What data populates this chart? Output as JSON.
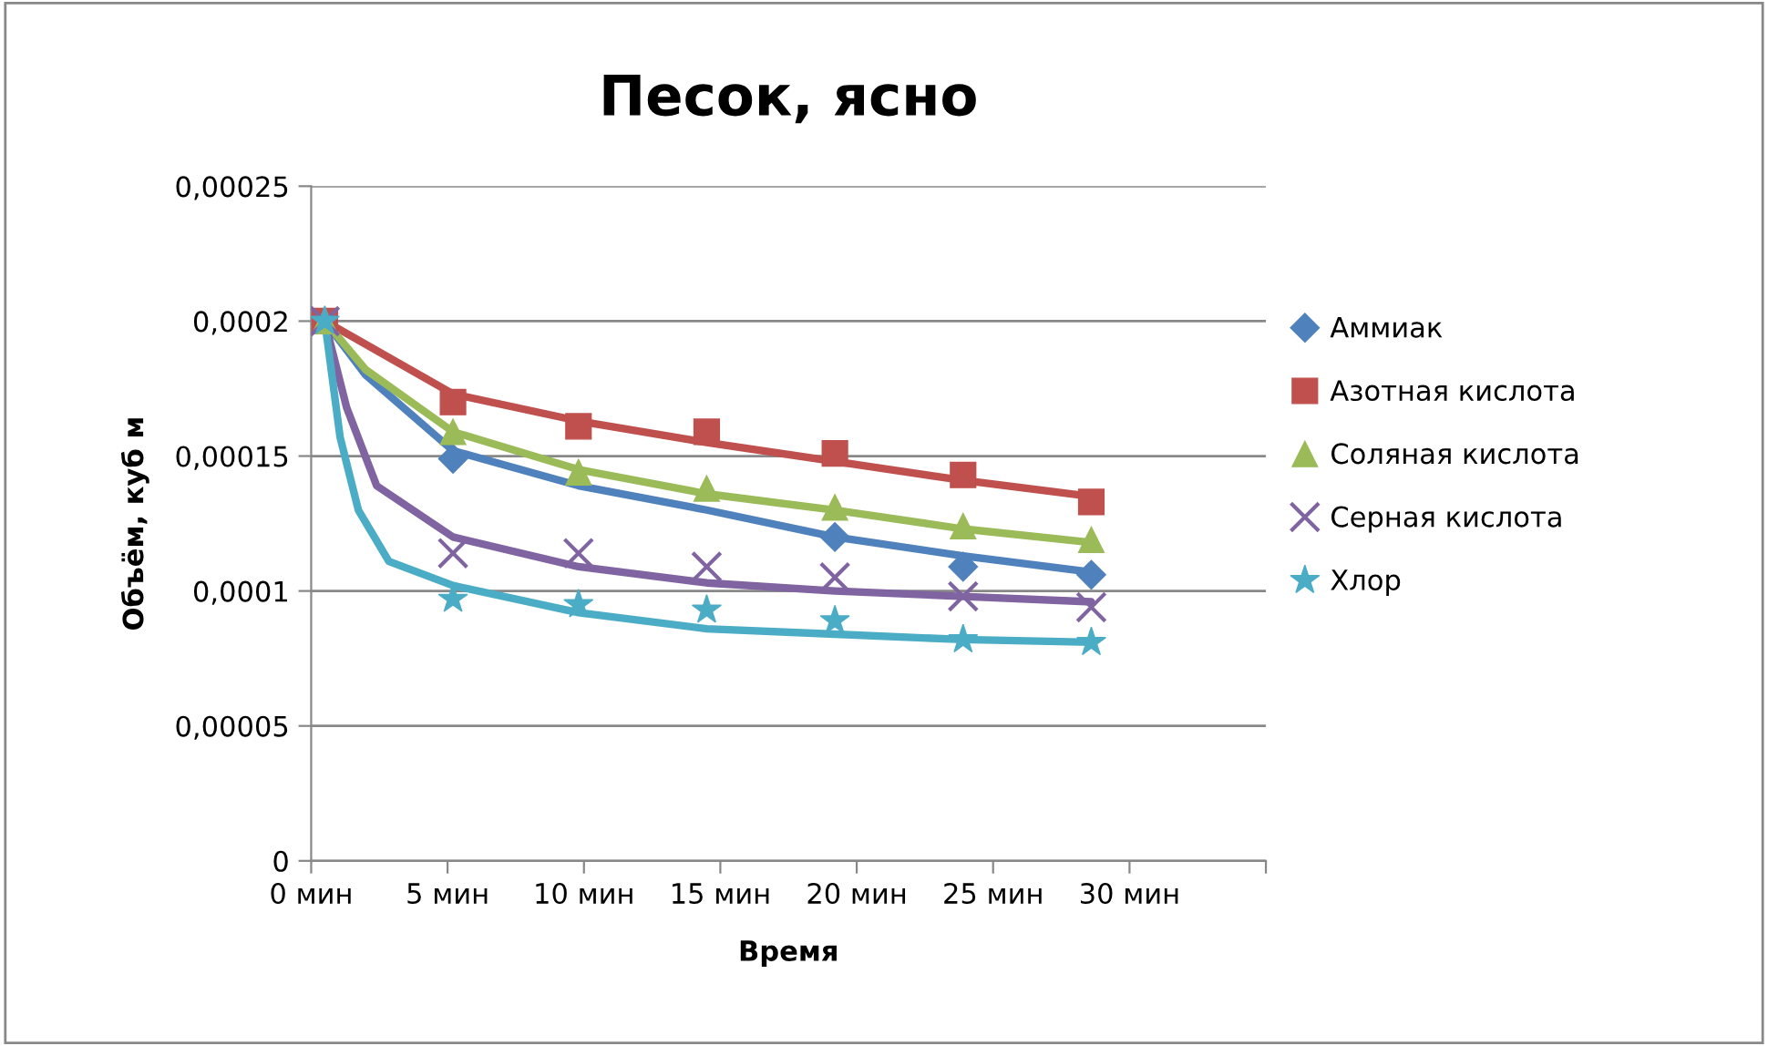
{
  "chart_data": {
    "type": "scatter",
    "title": "Песок, ясно",
    "xlabel": "Время",
    "ylabel": "Объём, куб м",
    "xlim": [
      0,
      35
    ],
    "xticks": [
      {
        "value": 0,
        "label": "0 мин"
      },
      {
        "value": 5,
        "label": "5 мин"
      },
      {
        "value": 10,
        "label": "10 мин"
      },
      {
        "value": 15,
        "label": "15 мин"
      },
      {
        "value": 20,
        "label": "20 мин"
      },
      {
        "value": 25,
        "label": "25 мин"
      },
      {
        "value": 30,
        "label": "30 мин"
      },
      {
        "value": 35,
        "label": null
      }
    ],
    "ylim": [
      0,
      0.00025
    ],
    "yticks": [
      {
        "value": 0,
        "label": "0"
      },
      {
        "value": 5e-05,
        "label": "0,00005"
      },
      {
        "value": 0.0001,
        "label": "0,0001"
      },
      {
        "value": 0.00015,
        "label": "0,00015"
      },
      {
        "value": 0.0002,
        "label": "0,0002"
      },
      {
        "value": 0.00025,
        "label": "0,00025"
      }
    ],
    "grid": "y",
    "legend": "right",
    "x": [
      0.5,
      5.2,
      9.8,
      14.5,
      19.2,
      23.9,
      28.6
    ],
    "series": [
      {
        "type": "line",
        "color": "#4f81bd",
        "marker": "none",
        "x": [
          0.5,
          2.0,
          5.2,
          9.8,
          14.5,
          19.2,
          23.9,
          28.6
        ],
        "values": [
          0.0002,
          0.00018,
          0.000152,
          0.000139,
          0.00013,
          0.00012,
          0.000113,
          0.000107
        ]
      },
      {
        "type": "line",
        "color": "#c0504d",
        "marker": "none",
        "x": [
          0.5,
          5.2,
          9.8,
          14.5,
          19.2,
          23.9,
          28.6
        ],
        "values": [
          0.0002,
          0.000173,
          0.000163,
          0.000155,
          0.000148,
          0.000141,
          0.000135
        ]
      },
      {
        "type": "line",
        "color": "#9bbb59",
        "marker": "none",
        "x": [
          0.5,
          2.0,
          5.2,
          9.8,
          14.5,
          19.2,
          23.9,
          28.6
        ],
        "values": [
          0.0002,
          0.000182,
          0.000159,
          0.000145,
          0.000136,
          0.00013,
          0.000123,
          0.000118
        ]
      },
      {
        "type": "line",
        "color": "#8064a2",
        "marker": "none",
        "x": [
          0.5,
          1.3,
          2.4,
          5.2,
          9.8,
          14.5,
          19.2,
          23.9,
          28.6
        ],
        "values": [
          0.0002,
          0.000168,
          0.000139,
          0.00012,
          0.000109,
          0.000103,
          0.0001,
          9.8e-05,
          9.6e-05
        ]
      },
      {
        "type": "line",
        "color": "#4bacc6",
        "marker": "none",
        "x": [
          0.5,
          1.06,
          1.73,
          2.85,
          5.2,
          9.8,
          14.5,
          19.2,
          23.9,
          28.6
        ],
        "values": [
          0.0002,
          0.000157,
          0.00013,
          0.000111,
          0.000102,
          9.2e-05,
          8.6e-05,
          8.4e-05,
          8.2e-05,
          8.1e-05
        ]
      },
      {
        "name": "Аммиак",
        "color": "#4f81bd",
        "marker": "diamond",
        "values": [
          null,
          0.000149,
          null,
          null,
          0.00012,
          0.000109,
          0.000106
        ]
      },
      {
        "name": "Азотная кислота",
        "color": "#c0504d",
        "marker": "square",
        "values": [
          0.0002,
          0.00017,
          0.000161,
          0.000159,
          0.000151,
          0.000143,
          0.000133
        ]
      },
      {
        "name": "Соляная кислота",
        "color": "#9bbb59",
        "marker": "triangle",
        "values": [
          0.0002,
          0.000159,
          0.000144,
          0.000138,
          0.000131,
          0.000124,
          0.000119
        ]
      },
      {
        "name": "Серная кислота",
        "color": "#8064a2",
        "marker": "cross",
        "values": [
          0.0002,
          0.000114,
          0.000114,
          0.000109,
          0.000105,
          9.8e-05,
          9.4e-05
        ]
      },
      {
        "name": "Хлор",
        "color": "#4bacc6",
        "marker": "star",
        "values": [
          0.0002,
          9.7e-05,
          9.5e-05,
          9.3e-05,
          8.9e-05,
          8.2e-05,
          8.1e-05
        ]
      }
    ]
  }
}
